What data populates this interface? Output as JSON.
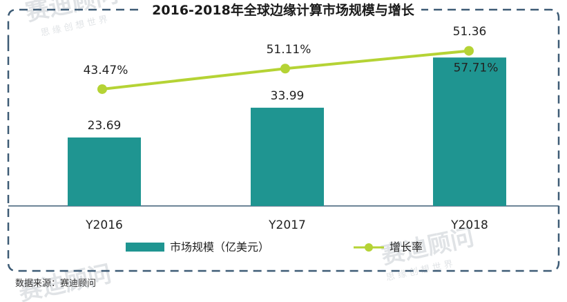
{
  "chart_data": {
    "type": "bar",
    "title": "2016-2018年全球边缘计算市场规模与增长",
    "categories": [
      "Y2016",
      "Y2017",
      "Y2018"
    ],
    "series": [
      {
        "name": "市场规模（亿美元）",
        "type": "bar",
        "values": [
          23.69,
          33.99,
          51.36
        ],
        "value_labels": [
          "23.69",
          "33.99",
          "51.36"
        ],
        "color": "#1f9591"
      },
      {
        "name": "增长率",
        "type": "line",
        "values": [
          43.47,
          51.11,
          57.71
        ],
        "value_labels": [
          "43.47%",
          "51.11%",
          "57.71%"
        ],
        "color": "#b5d335"
      }
    ],
    "bar_ylim": [
      0,
      55
    ],
    "line_ylim": [
      0,
      63
    ],
    "legend_position": "bottom",
    "grid": false
  },
  "source_note": "数据来源：赛迪顾问",
  "watermark": {
    "logo_text": "赛迪顾问",
    "slogan": "思 缘 创 想 世 界"
  },
  "colors": {
    "border": "#3d5b75",
    "axis": "#3d5b75"
  }
}
